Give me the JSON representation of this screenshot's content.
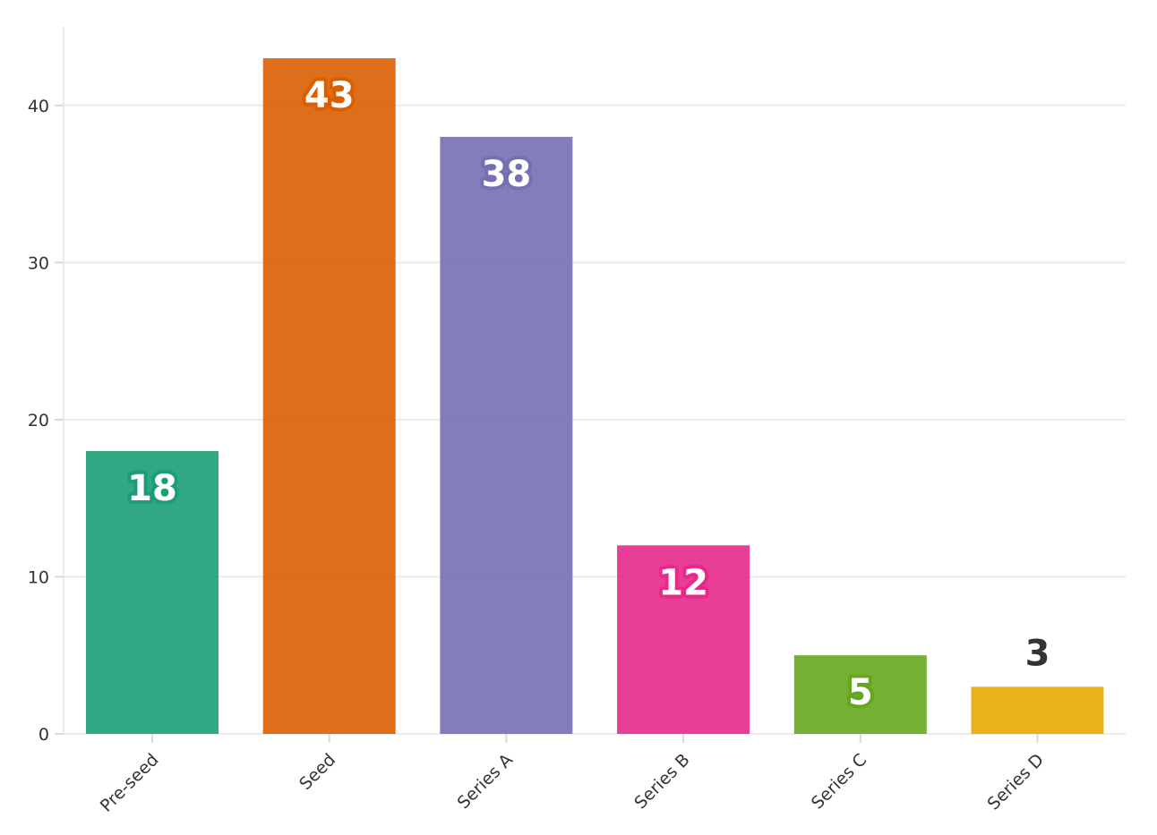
{
  "chart_data": {
    "type": "bar",
    "title": "",
    "xlabel": "",
    "ylabel": "",
    "categories": [
      "Pre-seed",
      "Seed",
      "Series A",
      "Series B",
      "Series C",
      "Series D"
    ],
    "values": [
      18,
      43,
      38,
      12,
      5,
      3
    ],
    "colors": [
      "#1b9e77",
      "#d95f02",
      "#7570b3",
      "#e7298a",
      "#66a61e",
      "#e6ab02"
    ],
    "ylim": [
      0,
      45
    ],
    "yticks": [
      0,
      10,
      20,
      30,
      40
    ],
    "grid": true,
    "legend": "none",
    "data_labels": [
      "18",
      "43",
      "38",
      "12",
      "5",
      "3"
    ]
  }
}
